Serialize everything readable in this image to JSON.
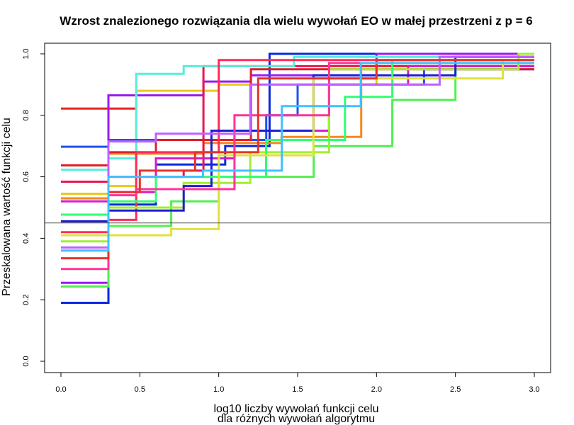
{
  "chart_data": {
    "type": "line",
    "step": true,
    "title": "Wzrost znalezionego rozwiązania dla wielu wywołań EO w małej przestrzeni z p = 6",
    "xlabel": [
      "log10 liczby wywołań funkcji celu",
      "dla różnych wywołań algorytmu"
    ],
    "ylabel": "Przeskalowana wartość funkcji celu",
    "xlim": [
      0,
      3
    ],
    "ylim": [
      0,
      1
    ],
    "x_ticks": [
      "0.0",
      "0.5",
      "1.0",
      "1.5",
      "2.0",
      "2.5",
      "3.0"
    ],
    "y_ticks": [
      "0.0",
      "0.2",
      "0.4",
      "0.6",
      "0.8",
      "1.0"
    ],
    "hline": 0.45,
    "series": [
      {
        "color": "#e8231f",
        "points": [
          [
            0,
            0.822
          ],
          [
            0.477,
            0.822
          ]
        ]
      },
      {
        "color": "#0a28e0",
        "points": [
          [
            0,
            0.19
          ],
          [
            0.301,
            0.19
          ],
          [
            0.301,
            0.51
          ],
          [
            0.602,
            0.51
          ],
          [
            0.602,
            0.64
          ],
          [
            1.041,
            0.64
          ],
          [
            1.041,
            0.7
          ],
          [
            1.322,
            0.7
          ],
          [
            1.322,
            1.0
          ],
          [
            3.0,
            1.0
          ]
        ]
      },
      {
        "color": "#9b19f5",
        "points": [
          [
            0,
            0.255
          ],
          [
            0.301,
            0.255
          ],
          [
            0.301,
            0.865
          ],
          [
            0.903,
            0.865
          ],
          [
            0.903,
            0.91
          ],
          [
            1.204,
            0.91
          ],
          [
            1.204,
            0.93
          ],
          [
            2.0,
            0.93
          ],
          [
            2.0,
            1.0
          ],
          [
            3.0,
            1.0
          ]
        ]
      },
      {
        "color": "#50f050",
        "points": [
          [
            0,
            0.243
          ],
          [
            0.301,
            0.243
          ],
          [
            0.301,
            0.44
          ],
          [
            0.699,
            0.44
          ],
          [
            0.699,
            0.52
          ],
          [
            1.0,
            0.52
          ],
          [
            1.0,
            0.6
          ],
          [
            1.602,
            0.6
          ],
          [
            1.602,
            0.7
          ],
          [
            2.1,
            0.7
          ],
          [
            2.1,
            0.85
          ],
          [
            2.5,
            0.85
          ],
          [
            2.5,
            0.96
          ],
          [
            3.0,
            0.96
          ]
        ]
      },
      {
        "color": "#e8c81e",
        "points": [
          [
            0,
            0.545
          ],
          [
            0.301,
            0.545
          ],
          [
            0.301,
            0.57
          ],
          [
            0.477,
            0.57
          ],
          [
            0.477,
            0.88
          ],
          [
            1.0,
            0.88
          ],
          [
            1.0,
            0.9
          ],
          [
            2.0,
            0.9
          ],
          [
            2.0,
            0.97
          ],
          [
            3.0,
            0.97
          ]
        ]
      },
      {
        "color": "#f5881e",
        "points": [
          [
            0,
            0.53
          ],
          [
            0.301,
            0.53
          ],
          [
            0.301,
            0.675
          ],
          [
            0.903,
            0.675
          ],
          [
            0.903,
            0.71
          ],
          [
            1.398,
            0.71
          ],
          [
            1.398,
            0.73
          ],
          [
            1.903,
            0.73
          ],
          [
            1.903,
            0.96
          ],
          [
            3.0,
            0.96
          ]
        ]
      },
      {
        "color": "#ea1650",
        "points": [
          [
            0,
            0.584
          ],
          [
            0.301,
            0.584
          ],
          [
            0.301,
            0.6
          ],
          [
            0.778,
            0.6
          ],
          [
            0.778,
            0.62
          ],
          [
            0.903,
            0.62
          ],
          [
            0.903,
            0.96
          ],
          [
            3.0,
            0.96
          ]
        ]
      },
      {
        "color": "#55eedd",
        "points": [
          [
            0,
            0.623
          ],
          [
            0.301,
            0.623
          ],
          [
            0.301,
            0.66
          ],
          [
            0.477,
            0.66
          ],
          [
            0.477,
            0.935
          ],
          [
            0.778,
            0.935
          ],
          [
            0.778,
            0.96
          ],
          [
            1.477,
            0.96
          ],
          [
            1.477,
            0.99
          ],
          [
            3.0,
            0.99
          ]
        ]
      },
      {
        "color": "#2050ee",
        "points": [
          [
            0,
            0.698
          ],
          [
            0.301,
            0.698
          ],
          [
            0.301,
            0.72
          ],
          [
            1.301,
            0.72
          ],
          [
            1.301,
            0.8
          ],
          [
            1.5,
            0.8
          ],
          [
            1.5,
            0.9
          ],
          [
            2.301,
            0.9
          ],
          [
            2.301,
            0.95
          ],
          [
            3.0,
            0.95
          ]
        ]
      },
      {
        "color": "#d31ec8",
        "points": [
          [
            0,
            0.52
          ],
          [
            0.301,
            0.52
          ],
          [
            0.301,
            0.55
          ],
          [
            0.602,
            0.55
          ],
          [
            0.602,
            0.66
          ],
          [
            1.1,
            0.66
          ],
          [
            1.1,
            0.75
          ],
          [
            1.699,
            0.75
          ],
          [
            1.699,
            0.9
          ],
          [
            2.2,
            0.9
          ],
          [
            2.2,
            0.96
          ],
          [
            3.0,
            0.96
          ]
        ]
      },
      {
        "color": "#e01e28",
        "points": [
          [
            0,
            0.637
          ],
          [
            0.301,
            0.637
          ],
          [
            0.301,
            0.68
          ],
          [
            0.602,
            0.68
          ],
          [
            0.602,
            0.72
          ],
          [
            1.204,
            0.72
          ],
          [
            1.204,
            0.95
          ],
          [
            3.0,
            0.95
          ]
        ]
      },
      {
        "color": "#ff2a5a",
        "points": [
          [
            0,
            0.42
          ],
          [
            0.301,
            0.42
          ],
          [
            0.301,
            0.46
          ],
          [
            0.477,
            0.46
          ],
          [
            0.477,
            0.68
          ],
          [
            1.0,
            0.68
          ],
          [
            1.0,
            0.98
          ],
          [
            3.0,
            0.98
          ]
        ]
      },
      {
        "color": "#a0f030",
        "points": [
          [
            0,
            0.39
          ],
          [
            0.301,
            0.39
          ],
          [
            0.301,
            0.5
          ],
          [
            0.778,
            0.5
          ],
          [
            0.778,
            0.58
          ],
          [
            1.2,
            0.58
          ],
          [
            1.2,
            0.68
          ],
          [
            1.7,
            0.68
          ],
          [
            1.7,
            0.95
          ],
          [
            2.9,
            0.95
          ],
          [
            2.9,
            1.0
          ],
          [
            3.0,
            1.0
          ]
        ]
      },
      {
        "color": "#1e1ed2",
        "points": [
          [
            0,
            0.455
          ],
          [
            0.301,
            0.455
          ],
          [
            0.301,
            0.49
          ],
          [
            0.778,
            0.49
          ],
          [
            0.778,
            0.57
          ],
          [
            0.954,
            0.57
          ],
          [
            0.954,
            0.75
          ],
          [
            1.6,
            0.75
          ],
          [
            1.6,
            0.93
          ],
          [
            2.5,
            0.93
          ],
          [
            2.5,
            0.99
          ],
          [
            3.0,
            0.99
          ]
        ]
      },
      {
        "color": "#30ff70",
        "points": [
          [
            0,
            0.477
          ],
          [
            0.301,
            0.477
          ],
          [
            0.301,
            0.52
          ],
          [
            0.602,
            0.52
          ],
          [
            0.602,
            0.6
          ],
          [
            1.3,
            0.6
          ],
          [
            1.3,
            0.72
          ],
          [
            1.8,
            0.72
          ],
          [
            1.8,
            0.86
          ],
          [
            2.1,
            0.86
          ],
          [
            2.1,
            0.98
          ],
          [
            3.0,
            0.98
          ]
        ]
      },
      {
        "color": "#e0e040",
        "points": [
          [
            0,
            0.41
          ],
          [
            0.301,
            0.41
          ],
          [
            0.301,
            0.41
          ],
          [
            0.699,
            0.41
          ],
          [
            0.699,
            0.43
          ],
          [
            1.0,
            0.43
          ],
          [
            1.0,
            0.67
          ],
          [
            1.6,
            0.67
          ],
          [
            1.6,
            0.92
          ],
          [
            2.8,
            0.92
          ],
          [
            2.8,
            0.98
          ],
          [
            3.0,
            0.98
          ]
        ]
      },
      {
        "color": "#ff3399",
        "points": [
          [
            0,
            0.3
          ],
          [
            0.301,
            0.3
          ],
          [
            0.301,
            0.54
          ],
          [
            0.477,
            0.54
          ],
          [
            0.477,
            0.56
          ],
          [
            1.1,
            0.56
          ],
          [
            1.1,
            0.8
          ],
          [
            1.7,
            0.8
          ],
          [
            1.7,
            0.97
          ],
          [
            3.0,
            0.97
          ]
        ]
      },
      {
        "color": "#c060ff",
        "points": [
          [
            0,
            0.37
          ],
          [
            0.301,
            0.37
          ],
          [
            0.301,
            0.715
          ],
          [
            0.602,
            0.715
          ],
          [
            0.602,
            0.74
          ],
          [
            1.2,
            0.74
          ],
          [
            1.2,
            0.9
          ],
          [
            2.4,
            0.9
          ],
          [
            2.4,
            0.99
          ],
          [
            3.0,
            0.99
          ]
        ]
      },
      {
        "color": "#e6332a",
        "points": [
          [
            0,
            0.335
          ],
          [
            0.301,
            0.335
          ],
          [
            0.301,
            0.55
          ],
          [
            0.5,
            0.55
          ],
          [
            0.5,
            0.62
          ],
          [
            0.85,
            0.62
          ],
          [
            0.85,
            0.68
          ],
          [
            1.25,
            0.68
          ],
          [
            1.25,
            0.92
          ],
          [
            2.0,
            0.92
          ],
          [
            2.0,
            0.98
          ],
          [
            3.0,
            0.98
          ]
        ]
      },
      {
        "color": "#40c0ff",
        "points": [
          [
            0,
            0.36
          ],
          [
            0.301,
            0.36
          ],
          [
            0.301,
            0.6
          ],
          [
            0.9,
            0.6
          ],
          [
            0.9,
            0.62
          ],
          [
            1.4,
            0.62
          ],
          [
            1.4,
            0.83
          ],
          [
            1.9,
            0.83
          ],
          [
            1.9,
            0.97
          ],
          [
            3.0,
            0.97
          ]
        ]
      }
    ]
  }
}
